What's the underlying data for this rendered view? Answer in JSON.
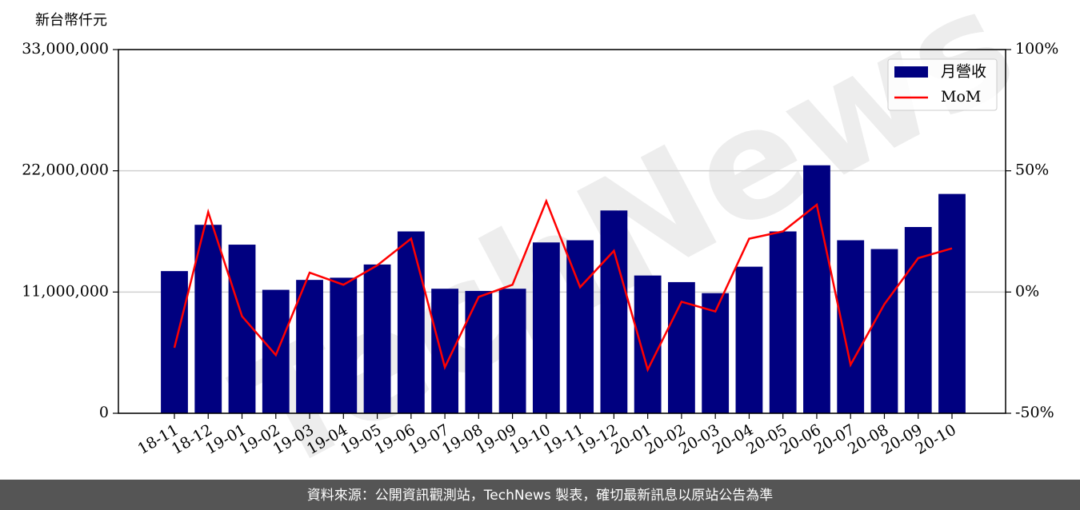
{
  "chart_data": {
    "type": "bar_line",
    "y_label": "新台幣仟元",
    "watermark": "TechNews",
    "footer": "資料來源：公開資訊觀測站，TechNews 製表，確切最新訊息以原站公告為準",
    "categories": [
      "18-11",
      "18-12",
      "19-01",
      "19-02",
      "19-03",
      "19-04",
      "19-05",
      "19-06",
      "19-07",
      "19-08",
      "19-09",
      "19-10",
      "19-11",
      "19-12",
      "20-01",
      "20-02",
      "20-03",
      "20-04",
      "20-05",
      "20-06",
      "20-07",
      "20-08",
      "20-09",
      "20-10"
    ],
    "series": [
      {
        "name": "月營收",
        "type": "bar",
        "color": "#000080",
        "values": [
          12900000,
          17100000,
          15300000,
          11200000,
          12100000,
          12300000,
          13500000,
          16500000,
          11300000,
          11100000,
          11300000,
          15500000,
          15700000,
          18400000,
          12500000,
          11900000,
          10900000,
          13300000,
          16500000,
          22500000,
          15700000,
          14900000,
          16900000,
          19900000
        ]
      },
      {
        "name": "MoM",
        "type": "line",
        "axis": "y2",
        "color": "#ff0000",
        "values": [
          -23,
          33,
          -10,
          -26,
          8,
          3,
          11,
          22,
          -31,
          -2,
          3,
          37.5,
          2,
          17,
          -32,
          -4,
          -8,
          22,
          25,
          36,
          -30,
          -5,
          14,
          18
        ]
      }
    ],
    "ylim": [
      0,
      33000000
    ],
    "yticks": [
      0,
      {
        "value": 11000000,
        "label": "11,000,000"
      },
      {
        "value": 22000000,
        "label": "22,000,000"
      },
      {
        "value": 33000000,
        "label": "33,000,000"
      }
    ],
    "y2lim": [
      -50,
      100
    ],
    "y2ticks": [
      {
        "value": -50,
        "label": "-50%"
      },
      {
        "value": 0,
        "label": "0%"
      },
      {
        "value": 50,
        "label": "50%"
      },
      {
        "value": 100,
        "label": "100%"
      }
    ],
    "grid": true,
    "legend": "upper right"
  }
}
